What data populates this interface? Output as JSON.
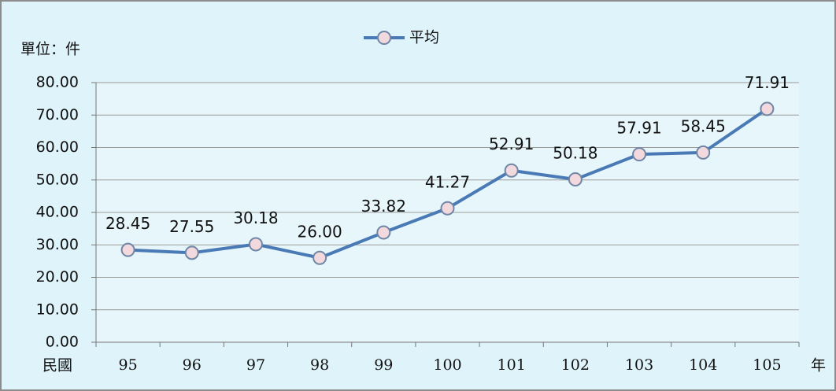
{
  "chart_data": {
    "type": "line",
    "unit_label": "單位：件",
    "x_axis_label_left": "民國",
    "x_axis_label_right": "年",
    "categories": [
      "95",
      "96",
      "97",
      "98",
      "99",
      "100",
      "101",
      "102",
      "103",
      "104",
      "105"
    ],
    "series": [
      {
        "name": "平均",
        "color": "#4a7ab5",
        "marker_fill": "#f2d9dd",
        "values": [
          28.45,
          27.55,
          30.18,
          26,
          33.82,
          41.27,
          52.91,
          50.18,
          57.91,
          58.45,
          71.91
        ],
        "value_labels": [
          "28.45",
          "27.55",
          "30.18",
          "26.00",
          "33.82",
          "41.27",
          "52.91",
          "50.18",
          "57.91",
          "58.45",
          "71.91"
        ]
      }
    ],
    "ylim": [
      0,
      80
    ],
    "yticks": [
      {
        "value": 0,
        "label": "0.00"
      },
      {
        "value": 10,
        "label": "10.00"
      },
      {
        "value": 20,
        "label": "20.00"
      },
      {
        "value": 30,
        "label": "30.00"
      },
      {
        "value": 40,
        "label": "40.00"
      },
      {
        "value": 50,
        "label": "50.00"
      },
      {
        "value": 60,
        "label": "60.00"
      },
      {
        "value": 70,
        "label": "70.00"
      },
      {
        "value": 80,
        "label": "80.00"
      }
    ],
    "grid": true,
    "legend": "top"
  }
}
